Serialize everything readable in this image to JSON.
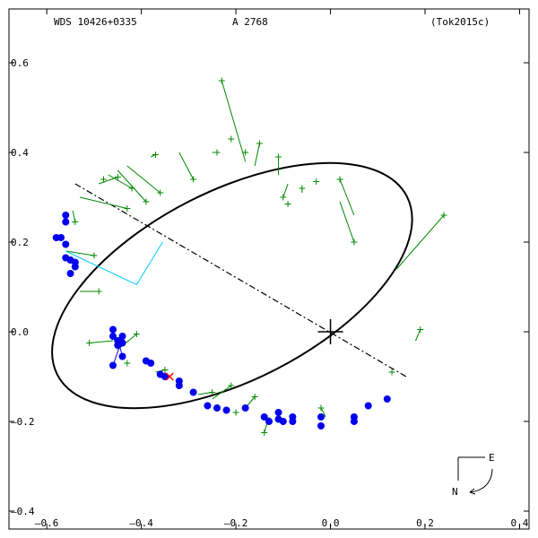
{
  "header": {
    "left": "WDS 10426+0335",
    "center": "A  2768",
    "right": "(Tok2015c)"
  },
  "chart_data": {
    "type": "scatter",
    "title": "",
    "xlabel": "",
    "ylabel": "",
    "xlim": [
      -0.68,
      0.42
    ],
    "ylim": [
      -0.44,
      0.72
    ],
    "x_ticks": [
      -0.6,
      -0.4,
      -0.2,
      0.0,
      0.2,
      0.4
    ],
    "y_ticks": [
      -0.4,
      -0.2,
      0.0,
      0.2,
      0.4,
      0.6
    ],
    "x_tick_labels": [
      "–0.6",
      "–0.4",
      "–0.2",
      "0.0",
      "0.2",
      "0.4"
    ],
    "y_tick_labels": [
      "–0.4",
      "–0.2",
      "0.0",
      "0.2",
      "0.4",
      "0.6"
    ],
    "orbit": {
      "center": [
        -0.208,
        0.103
      ],
      "semi_major": 0.415,
      "semi_minor": 0.2,
      "rotation_deg": -27
    },
    "line_of_nodes": [
      [
        -0.54,
        0.33
      ],
      [
        0.16,
        -0.1
      ]
    ],
    "primary": [
      0.0,
      0.0
    ],
    "periastron_marker": [
      -0.34,
      -0.1
    ],
    "blue_points": [
      [
        -0.56,
        0.26
      ],
      [
        -0.56,
        0.245
      ],
      [
        -0.57,
        0.21
      ],
      [
        -0.58,
        0.21
      ],
      [
        -0.56,
        0.195
      ],
      [
        -0.56,
        0.165
      ],
      [
        -0.55,
        0.16
      ],
      [
        -0.54,
        0.155
      ],
      [
        -0.54,
        0.145
      ],
      [
        -0.55,
        0.13
      ],
      [
        -0.46,
        0.005
      ],
      [
        -0.46,
        -0.01
      ],
      [
        -0.45,
        -0.02
      ],
      [
        -0.44,
        -0.01
      ],
      [
        -0.44,
        -0.025
      ],
      [
        -0.45,
        -0.03
      ],
      [
        -0.44,
        -0.055
      ],
      [
        -0.46,
        -0.075
      ],
      [
        -0.39,
        -0.065
      ],
      [
        -0.38,
        -0.07
      ],
      [
        -0.36,
        -0.095
      ],
      [
        -0.35,
        -0.1
      ],
      [
        -0.32,
        -0.11
      ],
      [
        -0.32,
        -0.12
      ],
      [
        -0.29,
        -0.135
      ],
      [
        -0.26,
        -0.165
      ],
      [
        -0.24,
        -0.17
      ],
      [
        -0.22,
        -0.175
      ],
      [
        -0.18,
        -0.17
      ],
      [
        -0.14,
        -0.19
      ],
      [
        -0.13,
        -0.2
      ],
      [
        -0.11,
        -0.18
      ],
      [
        -0.11,
        -0.195
      ],
      [
        -0.1,
        -0.2
      ],
      [
        -0.08,
        -0.19
      ],
      [
        -0.08,
        -0.2
      ],
      [
        -0.02,
        -0.19
      ],
      [
        -0.02,
        -0.21
      ],
      [
        0.05,
        -0.19
      ],
      [
        0.05,
        -0.2
      ],
      [
        0.08,
        -0.165
      ],
      [
        0.12,
        -0.15
      ]
    ],
    "green_points": [
      [
        [
          -0.45,
          0.345
        ],
        [
          -0.445,
          0.345
        ]
      ],
      [
        [
          -0.42,
          0.32
        ],
        [
          -0.42,
          0.32
        ]
      ],
      [
        [
          -0.39,
          0.29
        ],
        [
          -0.39,
          0.29
        ]
      ],
      [
        [
          -0.43,
          0.275
        ],
        [
          -0.43,
          0.275
        ]
      ],
      [
        [
          -0.54,
          0.245
        ],
        [
          -0.54,
          0.245
        ]
      ],
      [
        [
          -0.48,
          0.34
        ],
        [
          -0.48,
          0.34
        ]
      ],
      [
        [
          -0.36,
          0.31
        ],
        [
          -0.36,
          0.31
        ]
      ],
      [
        [
          -0.37,
          0.395
        ],
        [
          -0.37,
          0.395
        ]
      ],
      [
        [
          -0.29,
          0.34
        ],
        [
          -0.29,
          0.34
        ]
      ],
      [
        [
          -0.24,
          0.4
        ],
        [
          -0.24,
          0.4
        ]
      ],
      [
        [
          -0.21,
          0.43
        ],
        [
          -0.21,
          0.43
        ]
      ],
      [
        [
          -0.23,
          0.56
        ],
        [
          -0.23,
          0.56
        ]
      ],
      [
        [
          -0.18,
          0.4
        ],
        [
          -0.18,
          0.4
        ]
      ],
      [
        [
          -0.15,
          0.42
        ],
        [
          -0.15,
          0.42
        ]
      ],
      [
        [
          -0.11,
          0.39
        ],
        [
          -0.11,
          0.39
        ]
      ],
      [
        [
          -0.1,
          0.3
        ],
        [
          -0.1,
          0.3
        ]
      ],
      [
        [
          -0.09,
          0.285
        ],
        [
          -0.09,
          0.285
        ]
      ],
      [
        [
          -0.06,
          0.32
        ],
        [
          -0.06,
          0.32
        ]
      ],
      [
        [
          -0.03,
          0.335
        ],
        [
          -0.03,
          0.335
        ]
      ],
      [
        [
          0.02,
          0.34
        ],
        [
          0.02,
          0.34
        ]
      ],
      [
        [
          0.05,
          0.2
        ],
        [
          0.05,
          0.2
        ]
      ],
      [
        [
          0.24,
          0.26
        ],
        [
          0.24,
          0.26
        ]
      ],
      [
        [
          0.19,
          0.005
        ],
        [
          0.19,
          0.005
        ]
      ],
      [
        [
          0.13,
          -0.09
        ],
        [
          0.13,
          -0.09
        ]
      ],
      [
        [
          -0.49,
          0.09
        ],
        [
          -0.49,
          0.09
        ]
      ],
      [
        [
          -0.5,
          0.17
        ],
        [
          -0.5,
          0.17
        ]
      ],
      [
        [
          -0.51,
          -0.025
        ],
        [
          -0.51,
          -0.025
        ]
      ],
      [
        [
          -0.41,
          -0.005
        ],
        [
          -0.41,
          -0.005
        ]
      ],
      [
        [
          -0.43,
          -0.07
        ],
        [
          -0.43,
          -0.07
        ]
      ],
      [
        [
          -0.35,
          -0.085
        ],
        [
          -0.35,
          -0.085
        ]
      ],
      [
        [
          -0.25,
          -0.135
        ],
        [
          -0.25,
          -0.135
        ]
      ],
      [
        [
          -0.21,
          -0.12
        ],
        [
          -0.21,
          -0.12
        ]
      ],
      [
        [
          -0.2,
          -0.18
        ],
        [
          -0.2,
          -0.18
        ]
      ],
      [
        [
          -0.16,
          -0.145
        ],
        [
          -0.16,
          -0.145
        ]
      ],
      [
        [
          -0.14,
          -0.225
        ],
        [
          -0.14,
          -0.225
        ]
      ],
      [
        [
          -0.02,
          -0.17
        ],
        [
          -0.02,
          -0.17
        ]
      ]
    ],
    "residuals": [
      {
        "obs": [
          -0.45,
          0.345
        ],
        "calc": [
          -0.49,
          0.33
        ]
      },
      {
        "obs": [
          -0.42,
          0.32
        ],
        "calc": [
          -0.47,
          0.35
        ]
      },
      {
        "obs": [
          -0.39,
          0.29
        ],
        "calc": [
          -0.45,
          0.36
        ]
      },
      {
        "obs": [
          -0.43,
          0.275
        ],
        "calc": [
          -0.53,
          0.3
        ]
      },
      {
        "obs": [
          -0.54,
          0.245
        ],
        "calc": [
          -0.545,
          0.27
        ]
      },
      {
        "obs": [
          -0.36,
          0.31
        ],
        "calc": [
          -0.43,
          0.37
        ]
      },
      {
        "obs": [
          -0.37,
          0.395
        ],
        "calc": [
          -0.38,
          0.39
        ]
      },
      {
        "obs": [
          -0.29,
          0.34
        ],
        "calc": [
          -0.32,
          0.4
        ]
      },
      {
        "obs": [
          -0.24,
          0.4
        ],
        "calc": [
          -0.25,
          0.4
        ]
      },
      {
        "obs": [
          -0.23,
          0.56
        ],
        "calc": [
          -0.18,
          0.38
        ]
      },
      {
        "obs": [
          -0.15,
          0.42
        ],
        "calc": [
          -0.16,
          0.37
        ]
      },
      {
        "obs": [
          -0.11,
          0.39
        ],
        "calc": [
          -0.11,
          0.35
        ]
      },
      {
        "obs": [
          -0.1,
          0.3
        ],
        "calc": [
          -0.09,
          0.33
        ]
      },
      {
        "obs": [
          -0.06,
          0.32
        ],
        "calc": [
          -0.06,
          0.31
        ]
      },
      {
        "obs": [
          0.02,
          0.34
        ],
        "calc": [
          0.05,
          0.26
        ]
      },
      {
        "obs": [
          0.05,
          0.2
        ],
        "calc": [
          0.02,
          0.29
        ]
      },
      {
        "obs": [
          0.24,
          0.26
        ],
        "calc": [
          0.14,
          0.14
        ]
      },
      {
        "obs": [
          0.19,
          0.005
        ],
        "calc": [
          0.18,
          -0.02
        ]
      },
      {
        "obs": [
          -0.49,
          0.09
        ],
        "calc": [
          -0.53,
          0.09
        ]
      },
      {
        "obs": [
          -0.5,
          0.17
        ],
        "calc": [
          -0.56,
          0.18
        ]
      },
      {
        "obs": [
          -0.51,
          -0.025
        ],
        "calc": [
          -0.46,
          -0.02
        ]
      },
      {
        "obs": [
          -0.41,
          -0.005
        ],
        "calc": [
          -0.45,
          -0.04
        ]
      },
      {
        "obs": [
          -0.35,
          -0.085
        ],
        "calc": [
          -0.37,
          -0.09
        ]
      },
      {
        "obs": [
          -0.25,
          -0.135
        ],
        "calc": [
          -0.28,
          -0.14
        ]
      },
      {
        "obs": [
          -0.21,
          -0.12
        ],
        "calc": [
          -0.25,
          -0.15
        ]
      },
      {
        "obs": [
          -0.16,
          -0.145
        ],
        "calc": [
          -0.18,
          -0.17
        ]
      },
      {
        "obs": [
          -0.14,
          -0.225
        ],
        "calc": [
          -0.13,
          -0.19
        ]
      },
      {
        "obs": [
          -0.02,
          -0.17
        ],
        "calc": [
          -0.01,
          -0.19
        ]
      }
    ],
    "cyan_residual": [
      [
        -0.56,
        0.18
      ],
      [
        -0.41,
        0.105
      ],
      [
        -0.355,
        0.2
      ]
    ],
    "blue_residuals": [
      {
        "obs": [
          -0.46,
          -0.075
        ],
        "calc": [
          -0.445,
          -0.03
        ]
      },
      {
        "obs": [
          -0.44,
          -0.055
        ],
        "calc": [
          -0.445,
          -0.035
        ]
      }
    ],
    "colors": {
      "orbit": "#000000",
      "blue": "#0000ee",
      "green": "#008800",
      "cyan": "#00ccff",
      "red": "#ff0000"
    }
  },
  "compass": {
    "east": "E",
    "north": "N"
  }
}
